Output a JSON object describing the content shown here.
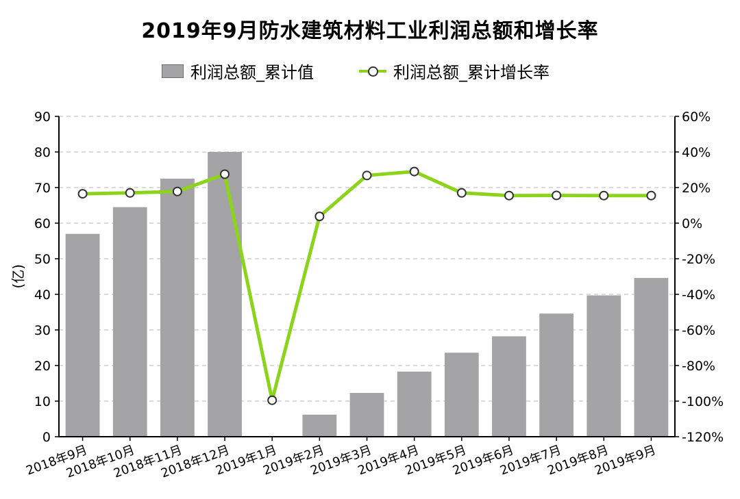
{
  "chart_data": {
    "type": "bar",
    "title": "2019年9月防水建筑材料工业利润总额和增长率",
    "ylabel": "(亿)",
    "ylim": [
      0,
      90
    ],
    "y2lim": [
      -120,
      60
    ],
    "yticks": [
      0,
      10,
      20,
      30,
      40,
      50,
      60,
      70,
      80,
      90
    ],
    "y2ticks": [
      "-120%",
      "-100%",
      "-80%",
      "-60%",
      "-40%",
      "-20%",
      "0%",
      "20%",
      "40%",
      "60%"
    ],
    "y2tick_values": [
      -120,
      -100,
      -80,
      -60,
      -40,
      -20,
      0,
      20,
      40,
      60
    ],
    "categories": [
      "2018年9月",
      "2018年10月",
      "2018年11月",
      "2018年12月",
      "2019年1月",
      "2019年2月",
      "2019年3月",
      "2019年4月",
      "2019年5月",
      "2019年6月",
      "2019年7月",
      "2019年8月",
      "2019年9月"
    ],
    "series": [
      {
        "name": "利润总额_累计值",
        "type": "bar",
        "axis": "left",
        "color": "#a4a3a5",
        "values": [
          57,
          64.5,
          72.5,
          80,
          null,
          6.2,
          12.3,
          18.3,
          23.6,
          28.2,
          34.6,
          39.7,
          44.6
        ]
      },
      {
        "name": "利润总额_累计增长率",
        "type": "line",
        "axis": "right",
        "color": "#8cd41c",
        "values": [
          16.5,
          17,
          17.8,
          27.5,
          -99.5,
          3.8,
          26.8,
          29,
          17,
          15.5,
          15.6,
          15.5,
          15.5
        ]
      }
    ],
    "grid": true,
    "legend": "top-center"
  }
}
